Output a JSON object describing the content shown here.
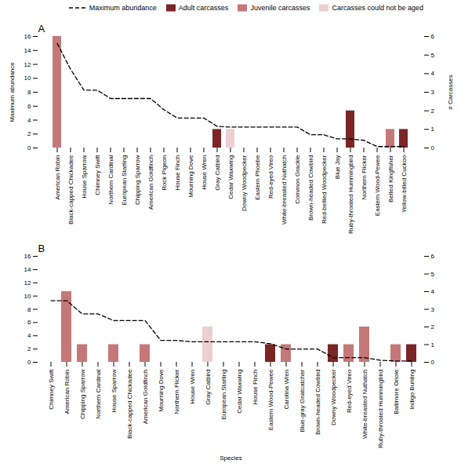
{
  "chart_data": [
    {
      "type": "bar",
      "title": "A",
      "categories": [
        "American Robin",
        "Black-capped Chickadee",
        "House Sparrow",
        "Chimney Swift",
        "Northern Cardinal",
        "European Starling",
        "Chipping Sparrow",
        "American Goldfinch",
        "Rock Pigeon",
        "House Finch",
        "Mourning Dove",
        "House Wren",
        "Gray Catbird",
        "Cedar Waxwing",
        "Downy Woodpecker",
        "Eastern Phoebe",
        "Red-eyed Vireo",
        "White-breasted Nuthatch",
        "Common Grackle",
        "Brown-headed Cowbird",
        "Red-bellied Woodpecker",
        "Blue Jay",
        "Ruby-throated Hummingbird",
        "Northern Flicker",
        "Eastern Wood-Pewee",
        "Belted Kingfisher",
        "Yellow-billed Cuckoo"
      ],
      "series": [
        {
          "name": "Maximum abundance",
          "type": "line",
          "line_style": "dashed",
          "color": "black",
          "values": [
            15,
            11.3,
            8.3,
            8.3,
            7.1,
            7.1,
            7.1,
            7.1,
            5.5,
            4.3,
            4.3,
            4.3,
            3.1,
            3.0,
            3.0,
            3.0,
            3.0,
            3.0,
            3.0,
            1.9,
            1.9,
            1.3,
            1.3,
            1.1,
            0.2,
            0.2,
            0.2
          ]
        },
        {
          "name": "Adult carcasses",
          "type": "bar",
          "axis": "y2",
          "color": "#7B2525",
          "values": [
            0,
            0,
            0,
            0,
            0,
            0,
            0,
            0,
            0,
            0,
            0,
            0,
            1,
            0,
            0,
            0,
            0,
            0,
            0,
            0,
            0,
            0,
            2,
            0,
            0,
            0,
            1
          ]
        },
        {
          "name": "Juvenile carcasses",
          "type": "bar",
          "axis": "y2",
          "color": "#C47878",
          "values": [
            6,
            0,
            0,
            0,
            0,
            0,
            0,
            0,
            0,
            0,
            0,
            0,
            0,
            0,
            0,
            0,
            0,
            0,
            0,
            0,
            0,
            0,
            0,
            0,
            0,
            1,
            0
          ]
        },
        {
          "name": "Carcasses could not be aged",
          "type": "bar",
          "axis": "y2",
          "color": "#EDCFCF",
          "values": [
            0,
            0,
            0,
            0,
            0,
            0,
            0,
            0,
            0,
            0,
            0,
            0,
            0,
            1,
            0,
            0,
            0,
            0,
            0,
            0,
            0,
            0,
            0,
            0,
            0,
            0,
            0
          ]
        }
      ],
      "ylabel": "Maximum abundance",
      "y2label": "# Carcasses",
      "ylim": [
        0,
        16
      ],
      "yticks": [
        0,
        2,
        4,
        6,
        8,
        10,
        12,
        14,
        16
      ],
      "y2lim": [
        0,
        6
      ],
      "y2ticks": [
        0,
        1,
        2,
        3,
        4,
        5,
        6
      ],
      "legend": "upper right",
      "grid": false
    },
    {
      "type": "bar",
      "title": "B",
      "categories": [
        "Chimney Swift",
        "American Robin",
        "Chipping Sparrow",
        "Northern Cardinal",
        "House Sparrow",
        "Black-capped Chickadee",
        "American Goldfinch",
        "Mourning Dove",
        "Northern Flicker",
        "House Wren",
        "Gray Catbird",
        "European Starling",
        "Cedar Waxwing",
        "House Finch",
        "Eastern Wood-Pewee",
        "Carolina Wren",
        "Blue-gray Gnatcatcher",
        "Brown-headed Cowbird",
        "Downy Woodpecker",
        "Red-eyed Vireo",
        "White-breasted Nuthatch",
        "Ruby-throated Hummingbird",
        "Baltimore Oriole",
        "Indigo Bunting"
      ],
      "series": [
        {
          "name": "Maximum abundance",
          "type": "line",
          "line_style": "dashed",
          "color": "black",
          "values": [
            9.3,
            9.3,
            7.3,
            7.3,
            6.3,
            6.3,
            6.3,
            3.3,
            3.3,
            3.1,
            3.1,
            3.1,
            3.1,
            3.1,
            2.8,
            2.0,
            2.0,
            2.0,
            0.7,
            0.7,
            0.7,
            0.3,
            0.2,
            0.2
          ]
        },
        {
          "name": "Adult carcasses",
          "type": "bar",
          "axis": "y2",
          "color": "#7B2525",
          "values": [
            0,
            0,
            0,
            0,
            0,
            0,
            0,
            0,
            0,
            0,
            0,
            0,
            0,
            0,
            1,
            0,
            0,
            0,
            1,
            0,
            0,
            0,
            0,
            1
          ]
        },
        {
          "name": "Juvenile carcasses",
          "type": "bar",
          "axis": "y2",
          "color": "#C47878",
          "values": [
            0,
            4,
            1,
            0,
            1,
            0,
            1,
            0,
            0,
            0,
            0,
            0,
            0,
            0,
            0,
            1,
            0,
            0,
            0,
            1,
            2,
            0,
            1,
            0
          ]
        },
        {
          "name": "Carcasses could not be aged",
          "type": "bar",
          "axis": "y2",
          "color": "#EDCFCF",
          "values": [
            0,
            0,
            0,
            0,
            0,
            0,
            0,
            0,
            0,
            0,
            2,
            0,
            0,
            0,
            0,
            0,
            0,
            0,
            0,
            0,
            0,
            0,
            0,
            0
          ]
        }
      ],
      "xlabel": "Species",
      "ylim": [
        0,
        16
      ],
      "yticks": [
        0,
        2,
        4,
        6,
        8,
        10,
        12,
        14,
        16
      ],
      "y2lim": [
        0,
        6
      ],
      "y2ticks": [
        0,
        1,
        2,
        3,
        4,
        5,
        6
      ],
      "grid": false
    }
  ]
}
